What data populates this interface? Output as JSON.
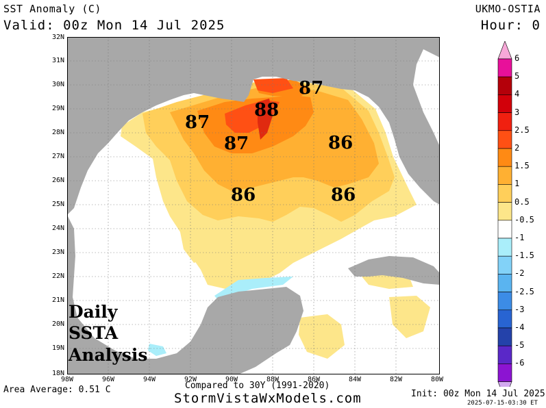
{
  "header": {
    "title": "SST Anomaly (C)",
    "valid": "Valid: 00z Mon 14 Jul 2025",
    "model": "UKMO-OSTIA",
    "hour": "Hour: 0"
  },
  "axes": {
    "lat_labels": [
      "32N",
      "31N",
      "30N",
      "29N",
      "28N",
      "27N",
      "26N",
      "25N",
      "24N",
      "23N",
      "22N",
      "21N",
      "20N",
      "19N",
      "18N"
    ],
    "lon_labels": [
      "98W",
      "96W",
      "94W",
      "92W",
      "90W",
      "88W",
      "86W",
      "84W",
      "82W",
      "80W"
    ]
  },
  "colorbar": {
    "labels": [
      "6",
      "5",
      "4",
      "3",
      "2.5",
      "2",
      "1.5",
      "1",
      "0.5",
      "-0.5",
      "-1",
      "-1.5",
      "-2",
      "-2.5",
      "-3",
      "-4",
      "-5",
      "-6"
    ],
    "colors": {
      "top_arrow": "#f7a8d8",
      "bins": [
        "#e8109a",
        "#b4000a",
        "#d2000a",
        "#f02010",
        "#ff5014",
        "#ff8a14",
        "#ffb032",
        "#ffcf5a",
        "#fde68a",
        "#ffffff",
        "#aaeefa",
        "#82d2f8",
        "#5ab4f0",
        "#3c8ce6",
        "#2864d2",
        "#2442aa",
        "#5a28c8",
        "#8c14d2"
      ],
      "bottom_arrow": "#d2a8f0"
    }
  },
  "map": {
    "colors": {
      "land": "#a8a8a8",
      "ocean": "#ffffff",
      "anom_05_1": "#fde68a",
      "anom_1_15": "#ffcf5a",
      "anom_15_2": "#ffb032",
      "anom_2_25": "#ff8a14",
      "anom_25_3": "#ff5014",
      "anom_3_4": "#e02a10",
      "cool": "#aaeefa"
    },
    "sst_labels": [
      "87",
      "88",
      "87",
      "87",
      "86",
      "86",
      "86"
    ],
    "overlay_title": [
      "Daily",
      "SSTA",
      "Analysis"
    ]
  },
  "footer": {
    "area_average": "Area Average: 0.51 C",
    "compared": "Compared to 30Y (1991-2020)",
    "site": "StormVistaWxModels.com",
    "init": "Init: 00z Mon 14 Jul 2025",
    "timestamp": "2025-07-15-03:30 ET"
  }
}
